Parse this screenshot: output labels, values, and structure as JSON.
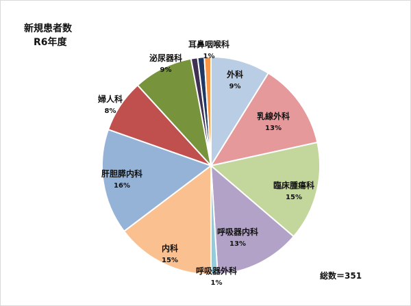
{
  "title": "新規患者数",
  "subtitle": "R6年度",
  "total_label": "総数＝351",
  "chart_data": {
    "type": "pie",
    "title": "新規患者数",
    "subtitle": "R6年度",
    "start": "12 o'clock, clockwise",
    "categories": [
      "外科",
      "乳線外科",
      "臨床腫瘍科",
      "呼吸器内科",
      "呼吸器外科",
      "内科",
      "肝胆膵内科",
      "婦人科",
      "泌尿器科",
      "(unlabeled)",
      "(unlabeled)",
      "耳鼻咽喉科"
    ],
    "values": [
      9,
      13,
      15,
      13,
      1,
      15,
      16,
      8,
      9,
      1,
      1,
      1
    ],
    "labels": [
      "9%",
      "13%",
      "15%",
      "13%",
      "1%",
      "15%",
      "16%",
      "8%",
      "9%",
      "",
      "",
      "1%"
    ],
    "colors": [
      "#b9cde5",
      "#e6999a",
      "#c3d69b",
      "#b3a2c7",
      "#93cddd",
      "#fac090",
      "#95b3d7",
      "#c0504d",
      "#77933c",
      "#403152",
      "#1f3864",
      "#f79646"
    ],
    "legend": "none"
  }
}
